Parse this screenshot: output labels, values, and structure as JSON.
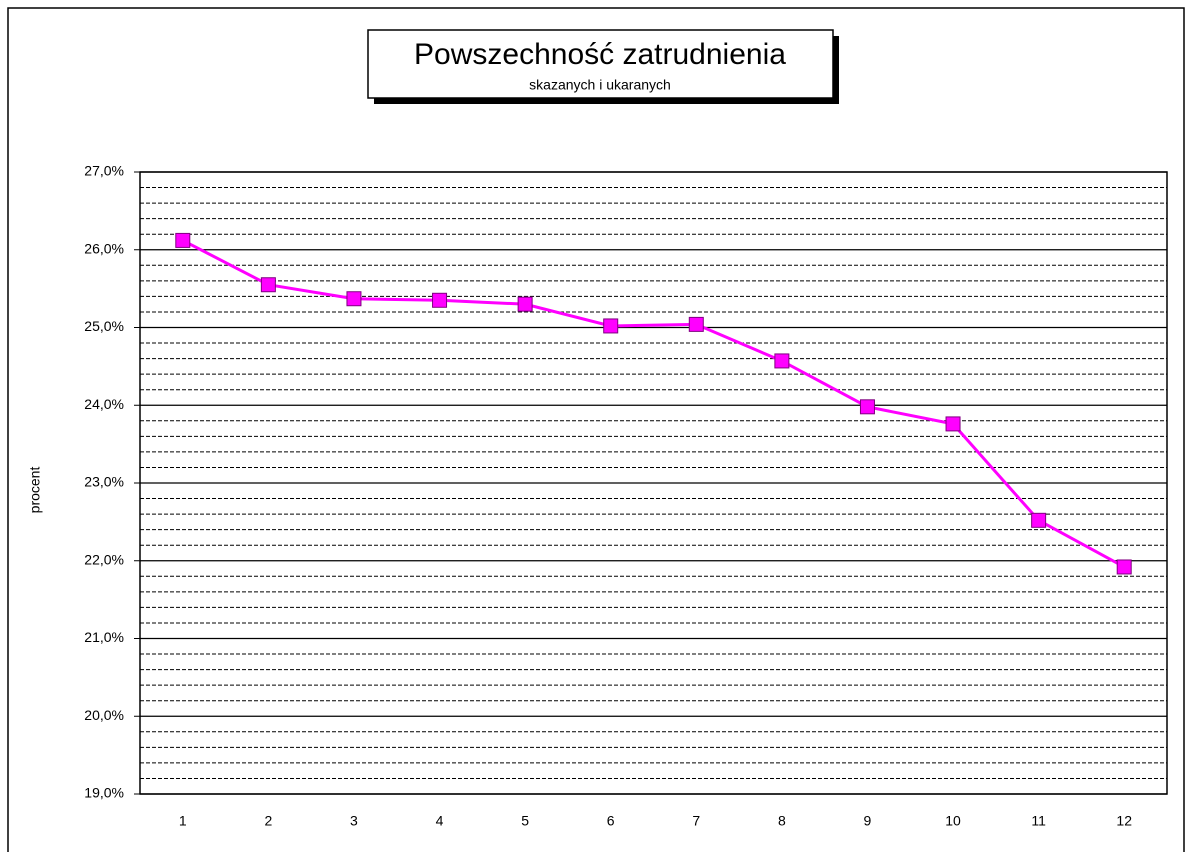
{
  "chart_data": {
    "type": "line",
    "title": "Powszechność zatrudnienia",
    "subtitle": "skazanych i ukaranych",
    "y_label": "procent",
    "categories": [
      1,
      2,
      3,
      4,
      5,
      6,
      7,
      8,
      9,
      10,
      11,
      12
    ],
    "series": [
      {
        "name": "procent",
        "color": "#ff00ff",
        "values": [
          26.12,
          25.55,
          25.37,
          25.35,
          25.3,
          25.02,
          25.04,
          24.57,
          23.98,
          23.76,
          22.52,
          21.92
        ]
      }
    ],
    "ylim": [
      19,
      27
    ],
    "yticks": [
      {
        "value": 19,
        "label": "19,0%"
      },
      {
        "value": 20,
        "label": "20,0%"
      },
      {
        "value": 21,
        "label": "21,0%"
      },
      {
        "value": 22,
        "label": "22,0%"
      },
      {
        "value": 23,
        "label": "23,0%"
      },
      {
        "value": 24,
        "label": "24,0%"
      },
      {
        "value": 25,
        "label": "25,0%"
      },
      {
        "value": 26,
        "label": "26,0%"
      },
      {
        "value": 27,
        "label": "27,0%"
      }
    ],
    "minor_yticks": [
      19.2,
      19.4,
      19.6,
      19.8,
      20.2,
      20.4,
      20.6,
      20.8,
      21.2,
      21.4,
      21.6,
      21.8,
      22.2,
      22.4,
      22.6,
      22.8,
      23.2,
      23.4,
      23.6,
      23.8,
      24.2,
      24.4,
      24.6,
      24.8,
      25.2,
      25.4,
      25.6,
      25.8,
      26.2,
      26.4,
      26.6,
      26.8
    ],
    "grid": true
  }
}
